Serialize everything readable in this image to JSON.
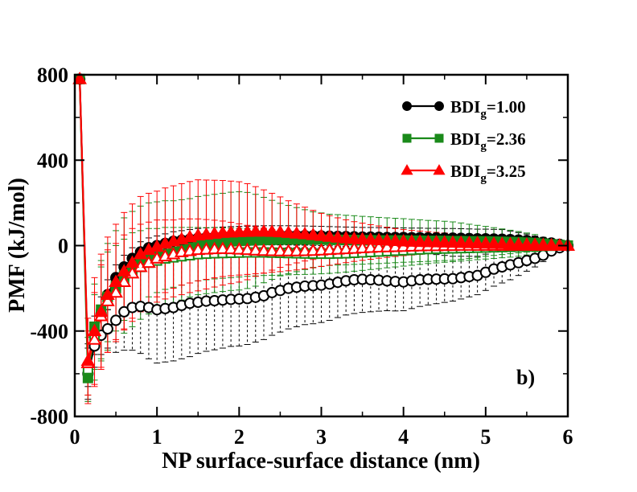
{
  "chart_data": {
    "type": "line",
    "panel_label": "b)",
    "xlabel": "NP surface-surface distance (nm)",
    "ylabel": "PMF (kJ/mol)",
    "xlim": [
      0,
      6
    ],
    "ylim": [
      -800,
      800
    ],
    "xticks": [
      0,
      1,
      2,
      3,
      4,
      5,
      6
    ],
    "yticks": [
      -800,
      -400,
      0,
      400,
      800
    ],
    "grid": false,
    "legend_position": "top-right",
    "series": [
      {
        "name": "BDI",
        "subscript": "g",
        "suffix": "=1.00",
        "color": "#000000",
        "marker": "circle",
        "filled_values": {
          "x": [
            0.06,
            0.16,
            0.24,
            0.32,
            0.4,
            0.5,
            0.6,
            0.7,
            0.8,
            0.9,
            1.0,
            1.1,
            1.2,
            1.3,
            1.4,
            1.5,
            1.6,
            1.7,
            1.8,
            1.9,
            2.0,
            2.1,
            2.2,
            2.3,
            2.4,
            2.5,
            2.6,
            2.7,
            2.8,
            2.9,
            3.0,
            3.1,
            3.2,
            3.3,
            3.4,
            3.5,
            3.6,
            3.7,
            3.8,
            3.9,
            4.0,
            4.1,
            4.2,
            4.3,
            4.4,
            4.5,
            4.6,
            4.7,
            4.8,
            4.9,
            5.0,
            5.1,
            5.2,
            5.3,
            5.4,
            5.5,
            5.6,
            5.7,
            5.8,
            5.9,
            6.0
          ],
          "y": [
            780,
            -560,
            -420,
            -320,
            -230,
            -150,
            -100,
            -60,
            -30,
            -10,
            0,
            10,
            20,
            25,
            30,
            35,
            38,
            40,
            42,
            44,
            45,
            46,
            47,
            48,
            48,
            48,
            48,
            47,
            47,
            46,
            45,
            44,
            43,
            42,
            41,
            40,
            40,
            39,
            38,
            38,
            38,
            37,
            37,
            36,
            36,
            35,
            35,
            34,
            33,
            32,
            32,
            31,
            30,
            28,
            26,
            24,
            20,
            16,
            12,
            6,
            0
          ],
          "err": [
            0,
            100,
            90,
            80,
            70,
            60,
            55,
            50,
            48,
            46,
            45,
            45,
            45,
            45,
            45,
            45,
            45,
            45,
            45,
            45,
            45,
            45,
            45,
            45,
            45,
            45,
            45,
            45,
            45,
            45,
            45,
            45,
            45,
            45,
            45,
            45,
            45,
            45,
            45,
            45,
            45,
            45,
            45,
            45,
            45,
            45,
            45,
            45,
            45,
            45,
            45,
            45,
            45,
            40,
            35,
            30,
            25,
            20,
            15,
            10,
            5
          ]
        },
        "open_values": {
          "x": [
            0.16,
            0.24,
            0.32,
            0.4,
            0.5,
            0.6,
            0.7,
            0.8,
            0.9,
            1.0,
            1.1,
            1.2,
            1.3,
            1.4,
            1.5,
            1.6,
            1.7,
            1.8,
            1.9,
            2.0,
            2.1,
            2.2,
            2.3,
            2.4,
            2.5,
            2.6,
            2.7,
            2.8,
            2.9,
            3.0,
            3.1,
            3.2,
            3.3,
            3.4,
            3.5,
            3.6,
            3.7,
            3.8,
            3.9,
            4.0,
            4.1,
            4.2,
            4.3,
            4.4,
            4.5,
            4.6,
            4.7,
            4.8,
            4.9,
            5.0,
            5.1,
            5.2,
            5.3,
            5.4,
            5.5,
            5.6,
            5.7,
            5.8,
            5.9,
            6.0
          ],
          "y": [
            -600,
            -470,
            -420,
            -390,
            -350,
            -310,
            -290,
            -285,
            -290,
            -300,
            -295,
            -290,
            -280,
            -270,
            -265,
            -260,
            -258,
            -255,
            -252,
            -250,
            -248,
            -242,
            -235,
            -220,
            -210,
            -200,
            -195,
            -190,
            -188,
            -185,
            -180,
            -172,
            -165,
            -160,
            -158,
            -160,
            -162,
            -165,
            -168,
            -170,
            -165,
            -160,
            -158,
            -157,
            -156,
            -155,
            -150,
            -145,
            -140,
            -125,
            -110,
            -100,
            -90,
            -80,
            -70,
            -60,
            -45,
            -25,
            -10,
            0
          ],
          "err": [
            120,
            100,
            90,
            90,
            150,
            180,
            200,
            220,
            240,
            250,
            250,
            250,
            250,
            250,
            240,
            235,
            230,
            225,
            220,
            220,
            215,
            210,
            205,
            200,
            195,
            190,
            185,
            180,
            178,
            175,
            170,
            165,
            160,
            158,
            155,
            150,
            145,
            140,
            138,
            135,
            130,
            125,
            120,
            115,
            110,
            105,
            100,
            95,
            90,
            85,
            80,
            75,
            70,
            60,
            50,
            40,
            30,
            20,
            10,
            5
          ]
        }
      },
      {
        "name": "BDI",
        "subscript": "g",
        "suffix": "=2.36",
        "color": "#1a8a1a",
        "marker": "square",
        "filled_values": {
          "x": [
            0.06,
            0.16,
            0.24,
            0.32,
            0.4,
            0.5,
            0.6,
            0.7,
            0.8,
            0.9,
            1.0,
            1.1,
            1.2,
            1.3,
            1.4,
            1.5,
            1.6,
            1.7,
            1.8,
            1.9,
            2.0,
            2.1,
            2.2,
            2.3,
            2.4,
            2.5,
            2.6,
            2.7,
            2.8,
            2.9,
            3.0,
            3.1,
            3.2,
            3.3,
            3.4,
            3.5,
            3.6,
            3.7,
            3.8,
            3.9,
            4.0,
            4.1,
            4.2,
            4.3,
            4.4,
            4.5,
            4.6,
            4.7,
            4.8,
            4.9,
            5.0,
            5.1,
            5.2,
            5.3,
            5.4,
            5.5,
            5.6,
            5.7,
            5.8,
            5.9,
            6.0
          ],
          "y": [
            780,
            -620,
            -380,
            -300,
            -240,
            -190,
            -140,
            -110,
            -80,
            -60,
            -50,
            -40,
            -30,
            -20,
            -10,
            0,
            5,
            10,
            15,
            20,
            22,
            24,
            25,
            26,
            27,
            28,
            28,
            28,
            28,
            28,
            28,
            27,
            27,
            26,
            26,
            25,
            25,
            24,
            24,
            24,
            24,
            23,
            23,
            22,
            22,
            22,
            21,
            21,
            20,
            20,
            20,
            19,
            18,
            17,
            16,
            14,
            12,
            9,
            6,
            3,
            0
          ],
          "err": [
            0,
            80,
            200,
            230,
            250,
            260,
            270,
            270,
            265,
            260,
            255,
            250,
            240,
            235,
            230,
            230,
            230,
            230,
            230,
            230,
            230,
            225,
            215,
            200,
            185,
            170,
            160,
            150,
            140,
            130,
            125,
            120,
            118,
            116,
            114,
            112,
            110,
            108,
            106,
            104,
            102,
            100,
            98,
            96,
            94,
            92,
            90,
            85,
            80,
            75,
            70,
            65,
            60,
            55,
            50,
            45,
            40,
            30,
            20,
            10,
            5
          ]
        },
        "open_values": {
          "x": [
            0.16,
            0.24,
            0.32,
            0.4,
            0.5,
            0.6,
            0.7,
            0.8,
            0.9,
            1.0,
            1.1,
            1.2,
            1.3,
            1.4,
            1.5,
            1.6,
            1.7,
            1.8,
            1.9,
            2.0,
            2.1,
            2.2,
            2.3,
            2.4,
            2.5,
            2.6,
            2.7,
            2.8,
            2.9,
            3.0,
            3.1,
            3.2,
            3.3,
            3.4,
            3.5,
            3.6,
            3.7,
            3.8,
            3.9,
            4.0,
            4.1,
            4.2,
            4.3,
            4.4,
            4.5,
            4.6,
            4.7,
            4.8,
            4.9,
            5.0,
            5.1,
            5.2,
            5.3,
            5.4,
            5.5,
            5.6,
            5.7,
            5.8,
            5.9,
            6.0
          ],
          "y": [
            -580,
            -430,
            -320,
            -240,
            -200,
            -160,
            -120,
            -100,
            -80,
            -70,
            -60,
            -55,
            -50,
            -45,
            -40,
            -38,
            -36,
            -35,
            -34,
            -33,
            -32,
            -32,
            -32,
            -33,
            -34,
            -35,
            -36,
            -37,
            -38,
            -38,
            -38,
            -37,
            -36,
            -34,
            -32,
            -30,
            -28,
            -26,
            -24,
            -22,
            -20,
            -18,
            -16,
            -15,
            -14,
            -13,
            -12,
            -11,
            -10,
            -9,
            -8,
            -7,
            -6,
            -5,
            -4,
            -3,
            -2,
            -1,
            0,
            0
          ],
          "err": [
            150,
            200,
            220,
            210,
            200,
            190,
            180,
            170,
            160,
            150,
            145,
            140,
            135,
            130,
            125,
            122,
            120,
            118,
            116,
            114,
            112,
            110,
            108,
            106,
            104,
            102,
            100,
            98,
            96,
            94,
            92,
            90,
            88,
            86,
            84,
            82,
            80,
            78,
            76,
            74,
            72,
            70,
            68,
            66,
            64,
            62,
            60,
            58,
            56,
            54,
            52,
            50,
            48,
            45,
            40,
            35,
            30,
            20,
            10,
            5
          ]
        }
      },
      {
        "name": "BDI",
        "subscript": "g",
        "suffix": "=3.25",
        "color": "#ff0000",
        "marker": "triangle",
        "filled_values": {
          "x": [
            0.06,
            0.16,
            0.24,
            0.32,
            0.4,
            0.5,
            0.6,
            0.7,
            0.8,
            0.9,
            1.0,
            1.1,
            1.2,
            1.3,
            1.4,
            1.5,
            1.6,
            1.7,
            1.8,
            1.9,
            2.0,
            2.1,
            2.2,
            2.3,
            2.4,
            2.5,
            2.6,
            2.7,
            2.8,
            2.9,
            3.0,
            3.1,
            3.2,
            3.3,
            3.4,
            3.5,
            3.6,
            3.7,
            3.8,
            3.9,
            4.0,
            4.1,
            4.2,
            4.3,
            4.4,
            4.5,
            4.6,
            4.7,
            4.8,
            4.9,
            5.0,
            5.1,
            5.2,
            5.3,
            5.4,
            5.5,
            5.6,
            5.7,
            5.8,
            5.9,
            6.0
          ],
          "y": [
            780,
            -540,
            -400,
            -310,
            -230,
            -170,
            -120,
            -80,
            -40,
            -20,
            -5,
            10,
            20,
            30,
            40,
            48,
            52,
            56,
            60,
            62,
            64,
            65,
            66,
            66,
            65,
            63,
            60,
            57,
            54,
            50,
            46,
            42,
            38,
            35,
            32,
            30,
            28,
            26,
            24,
            22,
            20,
            19,
            18,
            17,
            16,
            15,
            14,
            13,
            12,
            11,
            10,
            9,
            8,
            7,
            6,
            5,
            4,
            3,
            2,
            1,
            0
          ],
          "err": [
            0,
            200,
            250,
            270,
            270,
            270,
            275,
            275,
            270,
            265,
            260,
            260,
            260,
            260,
            260,
            260,
            255,
            250,
            245,
            240,
            235,
            225,
            210,
            195,
            180,
            165,
            150,
            138,
            126,
            115,
            105,
            98,
            92,
            86,
            80,
            75,
            70,
            66,
            62,
            58,
            55,
            52,
            50,
            48,
            46,
            44,
            42,
            40,
            38,
            36,
            34,
            32,
            30,
            28,
            26,
            24,
            22,
            18,
            14,
            8,
            4
          ]
        },
        "open_values": {
          "x": [
            0.16,
            0.24,
            0.32,
            0.4,
            0.5,
            0.6,
            0.7,
            0.8,
            0.9,
            1.0,
            1.1,
            1.2,
            1.3,
            1.4,
            1.5,
            1.6,
            1.7,
            1.8,
            1.9,
            2.0,
            2.1,
            2.2,
            2.3,
            2.4,
            2.5,
            2.6,
            2.7,
            2.8,
            2.9,
            3.0,
            3.1,
            3.2,
            3.3,
            3.4,
            3.5,
            3.6,
            3.7,
            3.8,
            3.9,
            4.0,
            4.1,
            4.2,
            4.3,
            4.4,
            4.5,
            4.6,
            4.7,
            4.8,
            4.9,
            5.0,
            5.1,
            5.2,
            5.3,
            5.4,
            5.5,
            5.6,
            5.7,
            5.8,
            5.9,
            6.0
          ],
          "y": [
            -550,
            -440,
            -330,
            -260,
            -220,
            -170,
            -130,
            -100,
            -80,
            -60,
            -50,
            -40,
            -30,
            -25,
            -20,
            -18,
            -16,
            -15,
            -16,
            -18,
            -20,
            -22,
            -24,
            -25,
            -26,
            -26,
            -26,
            -25,
            -24,
            -22,
            -20,
            -18,
            -16,
            -14,
            -12,
            -10,
            -8,
            -7,
            -6,
            -5,
            -4,
            -3,
            -2,
            -2,
            -1,
            -1,
            0,
            0,
            0,
            0,
            0,
            0,
            0,
            0,
            0,
            0,
            0,
            0,
            0,
            0
          ],
          "err": [
            150,
            220,
            240,
            240,
            230,
            220,
            210,
            200,
            190,
            180,
            170,
            160,
            155,
            150,
            145,
            140,
            135,
            130,
            125,
            120,
            115,
            110,
            105,
            100,
            96,
            92,
            88,
            84,
            80,
            76,
            72,
            68,
            64,
            60,
            57,
            54,
            51,
            48,
            45,
            42,
            40,
            38,
            36,
            34,
            32,
            30,
            28,
            26,
            24,
            22,
            20,
            18,
            16,
            14,
            12,
            10,
            8,
            6,
            4,
            2
          ]
        }
      }
    ]
  }
}
